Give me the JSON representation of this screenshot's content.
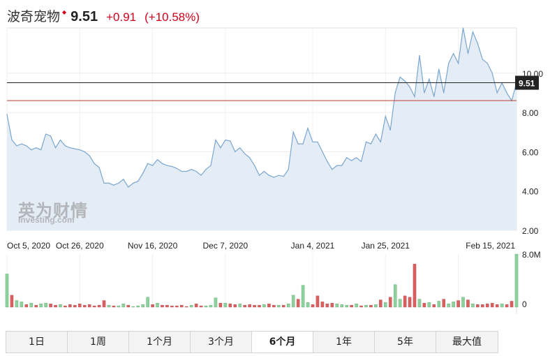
{
  "header": {
    "name": "波奇宠物",
    "price": "9.51",
    "change": "+0.91",
    "change_pct": "(+10.58%)"
  },
  "watermark": {
    "brand_cn": "英为财情",
    "brand_en": "Investing.com"
  },
  "colors": {
    "line": "#7aa6cf",
    "area": "#e4edf5",
    "price_line": "#222222",
    "ref_line": "#c0392b",
    "vol_up": "#8fd19e",
    "vol_down": "#d96060",
    "up_text": "#d0021b"
  },
  "tabs": [
    {
      "label": "1日",
      "active": false
    },
    {
      "label": "1周",
      "active": false
    },
    {
      "label": "1个月",
      "active": false
    },
    {
      "label": "3个月",
      "active": false
    },
    {
      "label": "6个月",
      "active": true
    },
    {
      "label": "1年",
      "active": false
    },
    {
      "label": "5年",
      "active": false
    },
    {
      "label": "最大值",
      "active": false
    }
  ],
  "chart_data": {
    "type": "area",
    "title": "波奇宠物",
    "grid": true,
    "x_ticks": [
      "Oct 5, 2020",
      "Oct 26, 2020",
      "Nov 16, 2020",
      "Dec 7, 2020",
      "Jan 4, 2021",
      "Jan 25, 2021",
      "Feb 15, 2021"
    ],
    "y_ticks": [
      2.0,
      4.0,
      6.0,
      8.0,
      10.0
    ],
    "y_tick_labels": [
      "2.00",
      "4.00",
      "6.00",
      "8.00",
      "10.00"
    ],
    "ylim": [
      2.0,
      12.3
    ],
    "last_price_label": "9.51",
    "last_price": 9.51,
    "reference_line": 8.6,
    "volume_axis_labels": [
      "8.0M",
      "0"
    ],
    "volume_max": 8.0,
    "volume_unit": "M",
    "series": [
      {
        "values": [
          7.9,
          6.6,
          6.3,
          6.4,
          6.3,
          6.1,
          6.2,
          6.1,
          6.9,
          6.8,
          6.2,
          6.6,
          6.3,
          6.2,
          6.15,
          6.1,
          6.0,
          5.8,
          5.4,
          5.2,
          4.4,
          4.4,
          4.3,
          4.4,
          4.6,
          4.2,
          4.4,
          4.5,
          4.9,
          5.4,
          5.3,
          5.6,
          5.4,
          5.3,
          5.25,
          5.15,
          5.0,
          5.0,
          5.1,
          5.0,
          4.8,
          5.1,
          5.3,
          6.6,
          6.2,
          6.6,
          6.55,
          6.0,
          6.2,
          5.9,
          5.7,
          5.3,
          4.8,
          5.0,
          4.8,
          4.7,
          4.8,
          4.75,
          5.1,
          7.0,
          6.4,
          6.4,
          7.2,
          6.5,
          6.5,
          6.0,
          5.5,
          5.1,
          5.3,
          5.3,
          5.7,
          5.55,
          5.7,
          5.5,
          6.5,
          6.4,
          6.9,
          6.5,
          7.8,
          7.1,
          9.0,
          9.8,
          9.6,
          9.3,
          8.8,
          10.9,
          9.0,
          9.7,
          8.8,
          10.2,
          9.0,
          10.5,
          11.0,
          10.5,
          12.3,
          11.0,
          12.1,
          11.5,
          10.7,
          10.5,
          10.0,
          9.0,
          9.5,
          9.0,
          8.6,
          9.51
        ],
        "volume": [
          5.0,
          1.8,
          1.0,
          0.8,
          0.4,
          0.6,
          0.3,
          0.5,
          0.6,
          0.5,
          0.3,
          0.4,
          0.2,
          0.4,
          0.3,
          0.5,
          0.3,
          0.4,
          0.2,
          0.3,
          1.0,
          0.3,
          0.2,
          0.2,
          0.5,
          0.3,
          0.1,
          0.2,
          0.4,
          1.5,
          0.4,
          0.6,
          0.3,
          0.3,
          0.2,
          0.2,
          0.3,
          0.1,
          0.3,
          0.5,
          0.2,
          0.2,
          0.3,
          1.4,
          0.6,
          0.6,
          0.5,
          0.4,
          0.5,
          0.3,
          0.4,
          0.3,
          0.3,
          0.4,
          0.5,
          0.3,
          0.3,
          0.3,
          0.5,
          1.8,
          1.2,
          3.3,
          0.7,
          0.4,
          1.7,
          0.8,
          0.5,
          0.6,
          0.5,
          0.4,
          0.3,
          0.3,
          0.5,
          0.2,
          0.3,
          0.3,
          0.4,
          1.1,
          0.7,
          1.5,
          3.4,
          1.2,
          1.7,
          1.5,
          6.5,
          1.2,
          0.6,
          0.7,
          0.4,
          0.9,
          1.2,
          0.5,
          0.8,
          1.0,
          1.5,
          1.1,
          0.5,
          0.4,
          0.4,
          0.5,
          0.6,
          0.4,
          0.5,
          0.4,
          0.9,
          8.0
        ],
        "up_down": [
          "u",
          "d",
          "u",
          "u",
          "d",
          "u",
          "d",
          "u",
          "u",
          "d",
          "d",
          "u",
          "d",
          "d",
          "d",
          "d",
          "d",
          "d",
          "d",
          "d",
          "d",
          "u",
          "d",
          "u",
          "u",
          "d",
          "u",
          "u",
          "u",
          "u",
          "d",
          "u",
          "d",
          "d",
          "d",
          "d",
          "d",
          "d",
          "u",
          "d",
          "d",
          "u",
          "u",
          "u",
          "d",
          "u",
          "d",
          "d",
          "u",
          "d",
          "d",
          "d",
          "d",
          "u",
          "d",
          "d",
          "u",
          "d",
          "u",
          "u",
          "d",
          "u",
          "u",
          "d",
          "d",
          "d",
          "d",
          "d",
          "u",
          "u",
          "u",
          "d",
          "u",
          "d",
          "u",
          "d",
          "u",
          "d",
          "u",
          "d",
          "u",
          "u",
          "d",
          "d",
          "d",
          "u",
          "d",
          "u",
          "d",
          "u",
          "d",
          "u",
          "u",
          "d",
          "u",
          "d",
          "u",
          "d",
          "d",
          "d",
          "d",
          "d",
          "u",
          "d",
          "d",
          "u"
        ]
      }
    ]
  }
}
